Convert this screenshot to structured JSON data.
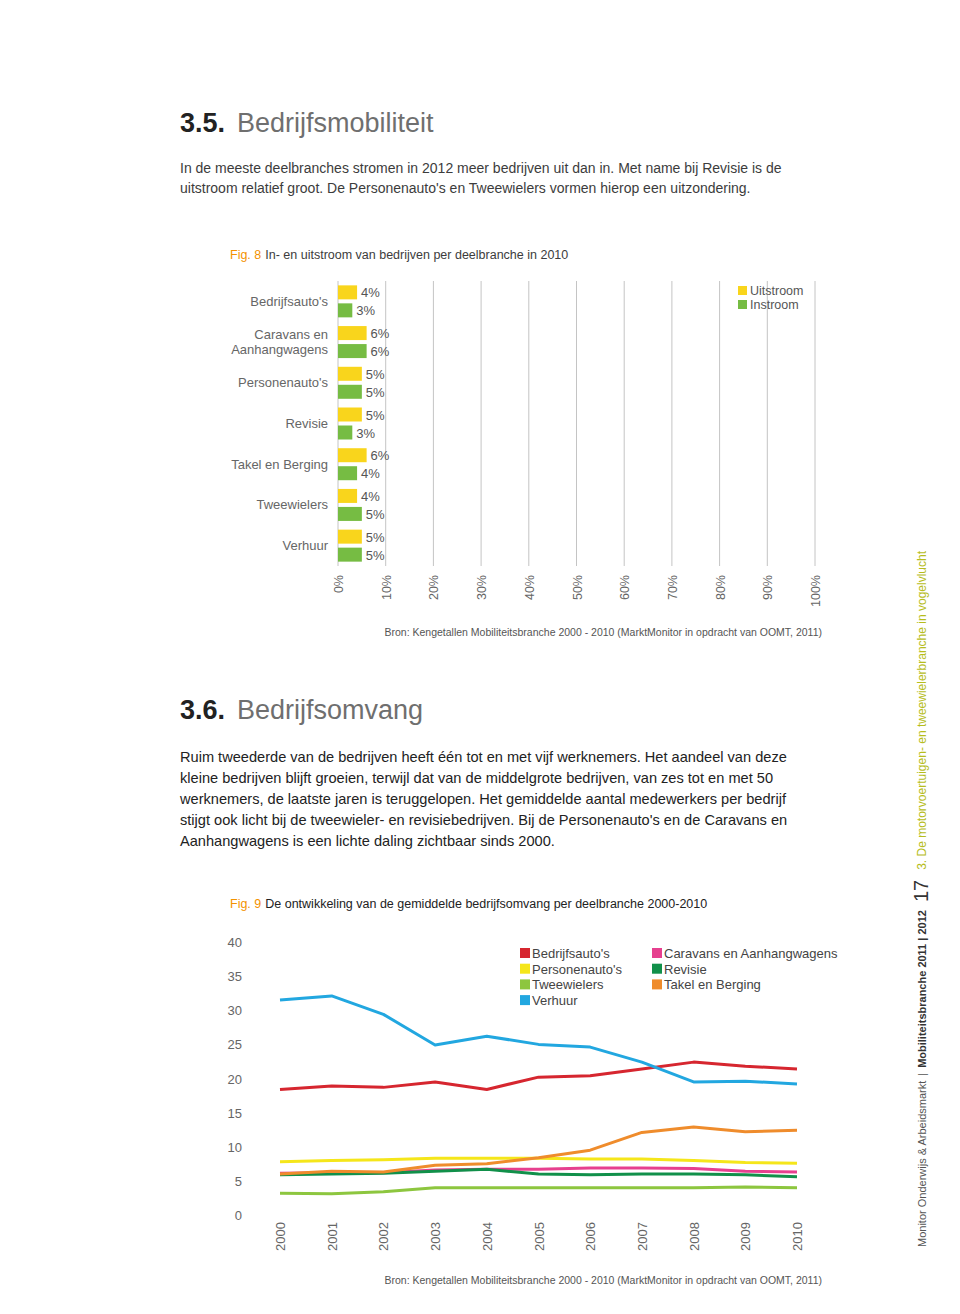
{
  "page": {
    "section_1": {
      "number": "3.5.",
      "title": "Bedrijfsmobiliteit",
      "paragraph": [
        "In de meeste deelbranches stromen in 2012 meer bedrijven uit dan in. Met name bij Revisie is de",
        "uitstroom relatief groot. De Personenauto's en Tweewielers vormen hierop een uitzondering."
      ]
    },
    "figure_1_label": "Fig. 8",
    "section_2": {
      "number": "3.6.",
      "title": "Bedrijfsomvang",
      "paragraph": [
        "Ruim tweederde van de bedrijven heeft één tot en met vijf werknemers. Het aandeel van deze",
        "kleine bedrijven blijft groeien, terwijl dat van de middelgrote bedrijven, van zes tot en met 50",
        "werknemers, de laatste jaren is teruggelopen. Het gemiddelde aantal medewerkers per bedrijf",
        "stijgt ook licht bij de tweewieler- en revisiebedrijven. Bij de Personenauto's en de Caravans en",
        "Aanhangwagens is een lichte daling zichtbaar sinds 2000."
      ]
    },
    "figure_2_label": "Fig. 9",
    "sidebar": {
      "publication": "Monitor Onderwijs & Arbeidsmarkt",
      "separator": "|",
      "edition": "Mobiliteitsbranche 2011 | 2012",
      "page_number": "17",
      "chapter": "3. De motorvoertuigen- en tweewielerbranche in vogelvlucht"
    }
  },
  "chart_data": [
    {
      "type": "bar",
      "orientation": "horizontal",
      "title": "In- en uitstroom van bedrijven per deelbranche in 2010",
      "source": "Bron: Kengetallen Mobiliteitsbranche 2000 - 2010 (MarktMonitor in opdracht van OOMT, 2011)",
      "categories": [
        "Bedrijfsauto's",
        "Caravans en Aanhangwagens",
        "Personenauto's",
        "Revisie",
        "Takel en Berging",
        "Tweewielers",
        "Verhuur"
      ],
      "series": [
        {
          "name": "Uitstroom",
          "color": "#f9d51c",
          "values": [
            4,
            6,
            5,
            5,
            6,
            4,
            5
          ],
          "value_labels": [
            "4%",
            "6%",
            "5%",
            "5%",
            "6%",
            "4%",
            "5%"
          ]
        },
        {
          "name": "Instroom",
          "color": "#76bc43",
          "values": [
            3,
            6,
            5,
            3,
            4,
            5,
            5
          ],
          "value_labels": [
            "3%",
            "6%",
            "5%",
            "3%",
            "4%",
            "5%",
            "5%"
          ]
        }
      ],
      "xlim": [
        0,
        100
      ],
      "xticks": [
        {
          "value": 0,
          "label": "0%"
        },
        {
          "value": 10,
          "label": "10%"
        },
        {
          "value": 20,
          "label": "20%"
        },
        {
          "value": 30,
          "label": "30%"
        },
        {
          "value": 40,
          "label": "40%"
        },
        {
          "value": 50,
          "label": "50%"
        },
        {
          "value": 60,
          "label": "60%"
        },
        {
          "value": 70,
          "label": "70%"
        },
        {
          "value": 80,
          "label": "80%"
        },
        {
          "value": 90,
          "label": "90%"
        },
        {
          "value": 100,
          "label": "100%"
        }
      ],
      "grid": true,
      "legend": "top-right",
      "data_labels": true
    },
    {
      "type": "line",
      "title": "De ontwikkeling van de gemiddelde bedrijfsomvang per deelbranche 2000-2010",
      "source": "Bron: Kengetallen Mobiliteitsbranche 2000 - 2010 (MarktMonitor in opdracht van OOMT, 2011)",
      "x": [
        2000,
        2001,
        2002,
        2003,
        2004,
        2005,
        2006,
        2007,
        2008,
        2009,
        2010
      ],
      "series": [
        {
          "name": "Bedrijfsauto's",
          "color": "#d6262f",
          "values": [
            18.4,
            18.9,
            18.7,
            19.5,
            18.4,
            20.2,
            20.4,
            21.4,
            22.4,
            21.8,
            21.4
          ]
        },
        {
          "name": "Personenauto's",
          "color": "#f5e61a",
          "values": [
            7.8,
            8.0,
            8.1,
            8.3,
            8.3,
            8.3,
            8.2,
            8.2,
            8.0,
            7.7,
            7.6
          ]
        },
        {
          "name": "Tweewielers",
          "color": "#8dc63f",
          "values": [
            3.2,
            3.1,
            3.4,
            4.0,
            4.0,
            4.0,
            4.0,
            4.0,
            4.0,
            4.1,
            4.0
          ]
        },
        {
          "name": "Verhuur",
          "color": "#22a7e0",
          "values": [
            31.5,
            32.1,
            29.4,
            24.9,
            26.2,
            25.0,
            24.6,
            22.4,
            19.5,
            19.6,
            19.2
          ]
        },
        {
          "name": "Caravans en Aanhangwagens",
          "color": "#e6408f",
          "values": [
            6.1,
            6.2,
            6.2,
            6.6,
            6.7,
            6.7,
            6.9,
            6.9,
            6.8,
            6.4,
            6.3
          ]
        },
        {
          "name": "Revisie",
          "color": "#11904a",
          "values": [
            5.9,
            6.0,
            6.1,
            6.4,
            6.7,
            6.0,
            5.9,
            6.0,
            6.0,
            5.9,
            5.6
          ]
        },
        {
          "name": "Takel en Berging",
          "color": "#ef8c2c",
          "values": [
            6.0,
            6.4,
            6.3,
            7.3,
            7.5,
            8.4,
            9.5,
            12.1,
            12.9,
            12.2,
            12.4
          ]
        }
      ],
      "xlim": [
        2000,
        2010
      ],
      "xticks": [
        2000,
        2001,
        2002,
        2003,
        2004,
        2005,
        2006,
        2007,
        2008,
        2009,
        2010
      ],
      "ylim": [
        0,
        40
      ],
      "yticks": [
        0,
        5,
        10,
        15,
        20,
        25,
        30,
        35,
        40
      ],
      "grid": false,
      "legend": "top-right"
    }
  ]
}
